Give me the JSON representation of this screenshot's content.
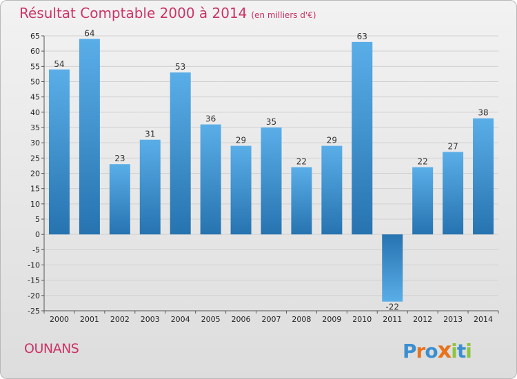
{
  "header": {
    "title": "Résultat Comptable 2000 à 2014",
    "subtitle": "(en milliers d'€)"
  },
  "footer": {
    "commune": "OUNANS",
    "logo_letters": [
      "P",
      "r",
      "o",
      "x",
      "i",
      "t",
      "i"
    ]
  },
  "colors": {
    "accent": "#cc3366",
    "bar_light": "#5aaee8",
    "bar_dark": "#2673b0",
    "logo": [
      "#3b8fd1",
      "#e8731c",
      "#3b8fd1",
      "#e8731c",
      "#8cc63f",
      "#3b8fd1",
      "#8cc63f"
    ]
  },
  "chart_data": {
    "type": "bar",
    "title": "Résultat Comptable 2000 à 2014",
    "subtitle": "(en milliers d'€)",
    "xlabel": "",
    "ylabel": "",
    "categories": [
      "2000",
      "2001",
      "2002",
      "2003",
      "2004",
      "2005",
      "2006",
      "2007",
      "2008",
      "2009",
      "2010",
      "2011",
      "2012",
      "2013",
      "2014"
    ],
    "values": [
      54,
      64,
      23,
      31,
      53,
      36,
      29,
      35,
      22,
      29,
      63,
      -22,
      22,
      27,
      38
    ],
    "ylim": [
      -25,
      65
    ],
    "yticks": [
      65,
      60,
      55,
      50,
      45,
      40,
      35,
      30,
      25,
      20,
      15,
      10,
      5,
      0,
      -5,
      -10,
      -15,
      -20,
      -25
    ],
    "grid": true
  }
}
